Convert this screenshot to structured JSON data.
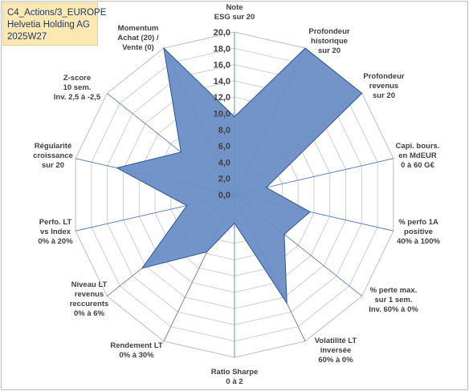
{
  "info": {
    "line1": "C4_Actions/3_EUROPE",
    "line2": "Helvetia Holding AG",
    "line3": "2025W27"
  },
  "chart_data": {
    "type": "radar",
    "categories": [
      [
        "Note",
        "ESG sur 20"
      ],
      [
        "Profondeur",
        "historique",
        "sur 20"
      ],
      [
        "Profondeur",
        "revenus",
        "sur 20"
      ],
      [
        "Capi. bours.",
        "en MdEUR",
        "0 à 60 G€"
      ],
      [
        "% perfo 1A",
        "positive",
        "40% à 100%"
      ],
      [
        "% perte max.",
        "sur 1 sem.",
        "Inv. 60% à 0%"
      ],
      [
        "Volatilité LT",
        "inversée",
        "60% à 0%"
      ],
      [
        "Ratio Sharpe",
        "0 à 2"
      ],
      [
        "Rendement LT",
        "0% à 30%"
      ],
      [
        "Niveau LT",
        "revenus",
        "reccurents",
        "0% à 6%"
      ],
      [
        "Perfo. LT",
        "vs Index",
        "0% à 20%"
      ],
      [
        "Régularité",
        "croissance",
        "sur 20"
      ],
      [
        "Z-score",
        "10 sem.",
        "Inv. 2,5 à -2,5"
      ],
      [
        "Momentum",
        "Achat (20) /",
        "Vente (0)"
      ]
    ],
    "values": [
      9.6,
      20.0,
      20.0,
      4.0,
      9.5,
      7.8,
      14.8,
      3.5,
      7.8,
      14.5,
      6.0,
      14.8,
      8.4,
      20.0
    ],
    "rlim": [
      0,
      20
    ],
    "rticks": [
      "0,0",
      "2,0",
      "4,0",
      "6,0",
      "8,0",
      "10,0",
      "12,0",
      "14,0",
      "16,0",
      "18,0",
      "20,0"
    ],
    "grid": true,
    "colors": {
      "fill": "#6a8ec6",
      "stroke": "#2e5597",
      "grid": "#d0d0d0",
      "spoke": "#4472c4"
    }
  }
}
